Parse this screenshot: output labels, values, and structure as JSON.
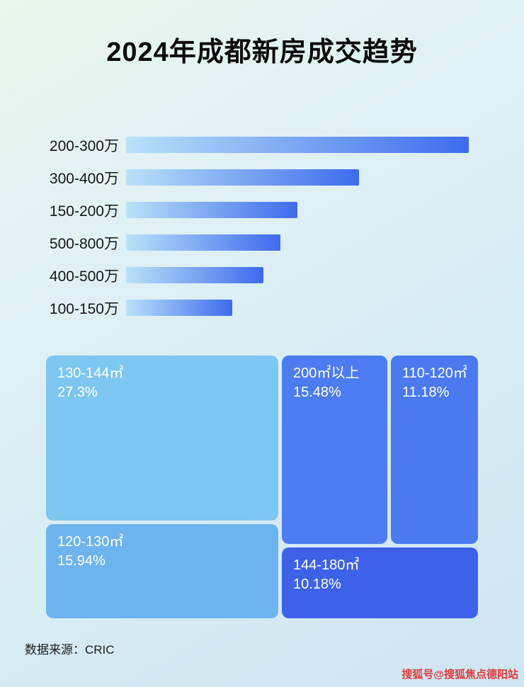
{
  "title": "2024年成都新房成交趋势",
  "footer": {
    "source": "数据来源：CRIC"
  },
  "watermark": "搜狐号@搜狐焦点德阳站",
  "chart_data": [
    {
      "type": "bar",
      "title": "2024年成都新房成交趋势",
      "orientation": "horizontal",
      "categories": [
        "200-300万",
        "300-400万",
        "150-200万",
        "500-800万",
        "400-500万",
        "100-150万"
      ],
      "values": [
        100,
        68,
        50,
        45,
        40,
        31
      ],
      "value_note": "relative bar length, % of longest bar (no numeric axis shown)",
      "bar_gradient": [
        "#b9e2f8",
        "#3e6bee"
      ],
      "grid": false,
      "legend": false
    },
    {
      "type": "treemap",
      "items": [
        {
          "label": "130-144㎡",
          "value": "27.3%",
          "color": "#7dc6f1"
        },
        {
          "label": "120-130㎡",
          "value": "15.94%",
          "color": "#6db4ef"
        },
        {
          "label": "200㎡以上",
          "value": "15.48%",
          "color": "#4c7cf1"
        },
        {
          "label": "110-120㎡",
          "value": "11.18%",
          "color": "#4a79f0"
        },
        {
          "label": "144-180㎡",
          "value": "10.18%",
          "color": "#3d62e9"
        }
      ]
    }
  ]
}
